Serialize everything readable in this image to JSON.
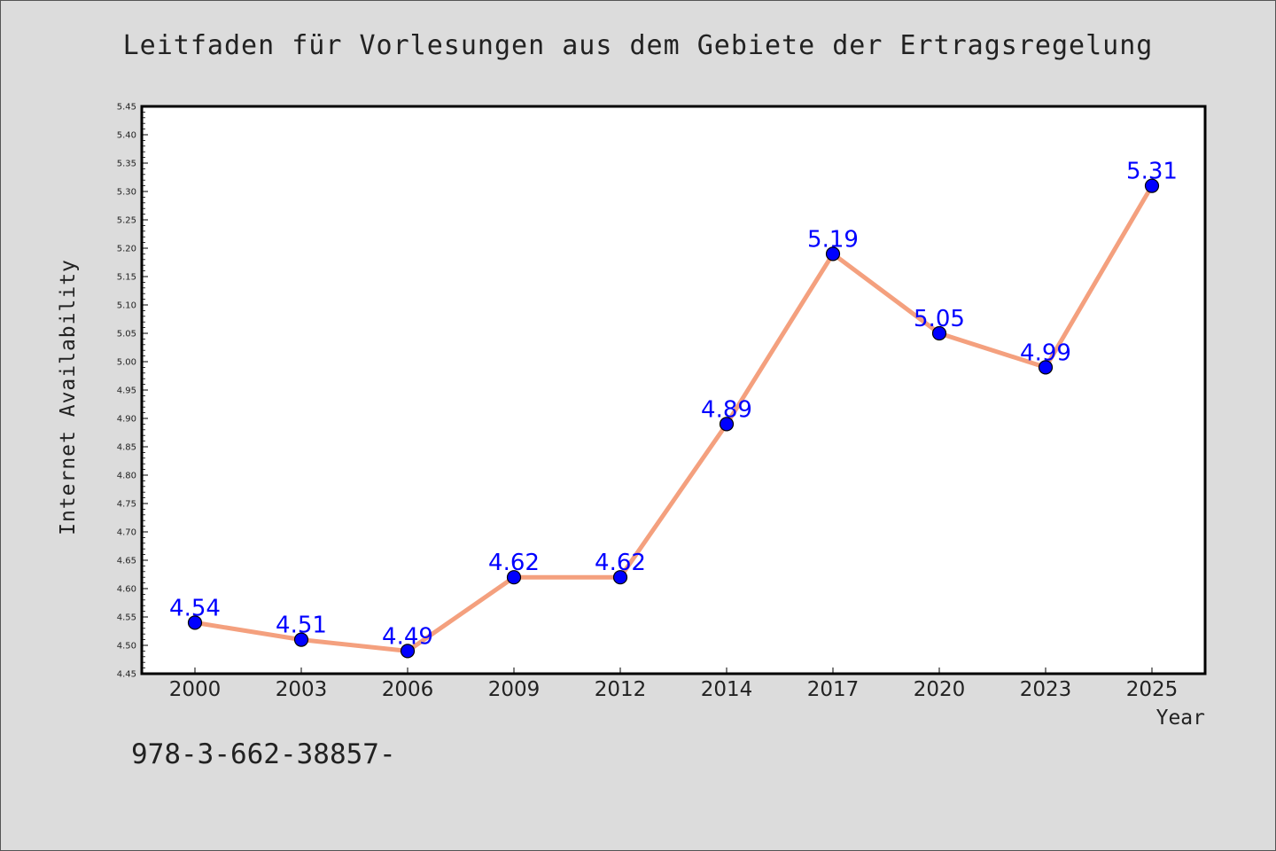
{
  "chart_data": {
    "type": "line",
    "title": "Leitfaden für Vorlesungen aus dem Gebiete der Ertragsregelung",
    "xlabel": "Year",
    "ylabel": "Internet Availability",
    "categories": [
      "2000",
      "2003",
      "2006",
      "2009",
      "2012",
      "2014",
      "2017",
      "2020",
      "2023",
      "2025"
    ],
    "values": [
      4.54,
      4.51,
      4.49,
      4.62,
      4.62,
      4.89,
      5.19,
      5.05,
      4.99,
      5.31
    ],
    "data_labels": [
      "4.54",
      "4.51",
      "4.49",
      "4.62",
      "4.62",
      "4.89",
      "5.19",
      "5.05",
      "4.99",
      "5.31"
    ],
    "ylim": [
      4.45,
      5.45
    ],
    "yticks": [
      "4.45",
      "4.50",
      "4.55",
      "4.60",
      "4.65",
      "4.70",
      "4.75",
      "4.80",
      "4.85",
      "4.90",
      "4.95",
      "5.00",
      "5.05",
      "5.10",
      "5.15",
      "5.20",
      "5.25",
      "5.30",
      "5.35",
      "5.40",
      "5.45"
    ],
    "grid": false,
    "legend": "none",
    "colors": {
      "line": "#f4a07e",
      "marker": "#0000ff",
      "label": "#0000ff",
      "background": "#dcdcdc",
      "plot_background": "#ffffff"
    }
  },
  "footnote": "978-3-662-38857-"
}
